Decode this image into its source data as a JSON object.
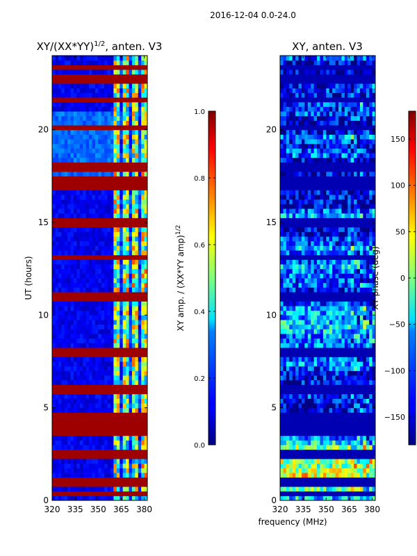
{
  "suptitle": "2016-12-04 0.0-24.0",
  "chart_data": [
    {
      "type": "heatmap",
      "title_prefix": "XY/(XX*YY)",
      "title_exp": "1/2",
      "title_suffix": ", anten. V3",
      "xlabel": "",
      "ylabel": "UT (hours)",
      "x_ticks": [
        320,
        335,
        350,
        365,
        380
      ],
      "xlim": [
        320,
        382
      ],
      "y_ticks": [
        0,
        5,
        10,
        15,
        20
      ],
      "ylim": [
        0,
        24
      ],
      "colorbar": {
        "label_prefix": "XY amp. / (XX*YY amp)",
        "label_exp": "1/2",
        "ticks": [
          "0.0",
          "0.2",
          "0.4",
          "0.6",
          "0.8",
          "1.0"
        ],
        "range": [
          0,
          1
        ]
      },
      "colormap": "jet",
      "flagged_rows_ut": [
        0.3,
        1.0,
        2.5,
        3.6,
        4.0,
        4.5,
        6.0,
        8.0,
        11.0,
        13.1,
        15.0,
        17.0,
        17.3,
        18.0,
        20.2,
        21.7,
        22.6,
        22.9,
        23.3
      ],
      "active_band_mhz": [
        360,
        382
      ]
    },
    {
      "type": "heatmap",
      "title": "XY, anten. V3",
      "xlabel": "frequency (MHz)",
      "ylabel": "",
      "x_ticks": [
        320,
        335,
        350,
        365,
        380
      ],
      "xlim": [
        320,
        382
      ],
      "y_ticks": [
        0,
        5,
        10,
        15,
        20
      ],
      "ylim": [
        0,
        24
      ],
      "colorbar": {
        "label": "XY phase (deg)",
        "ticks": [
          "150",
          "100",
          "50",
          "0",
          "−50",
          "−100",
          "−150"
        ],
        "tick_values": [
          150,
          100,
          50,
          0,
          -50,
          -100,
          -150
        ],
        "range": [
          -180,
          180
        ]
      },
      "colormap": "jet",
      "flagged_rows_ut": [
        0.3,
        1.0,
        2.5,
        3.6,
        4.0,
        4.5,
        6.0,
        8.0,
        11.0,
        13.1,
        15.0,
        17.0,
        17.3,
        18.0,
        20.2,
        21.7,
        22.6,
        22.9,
        23.3
      ]
    }
  ]
}
